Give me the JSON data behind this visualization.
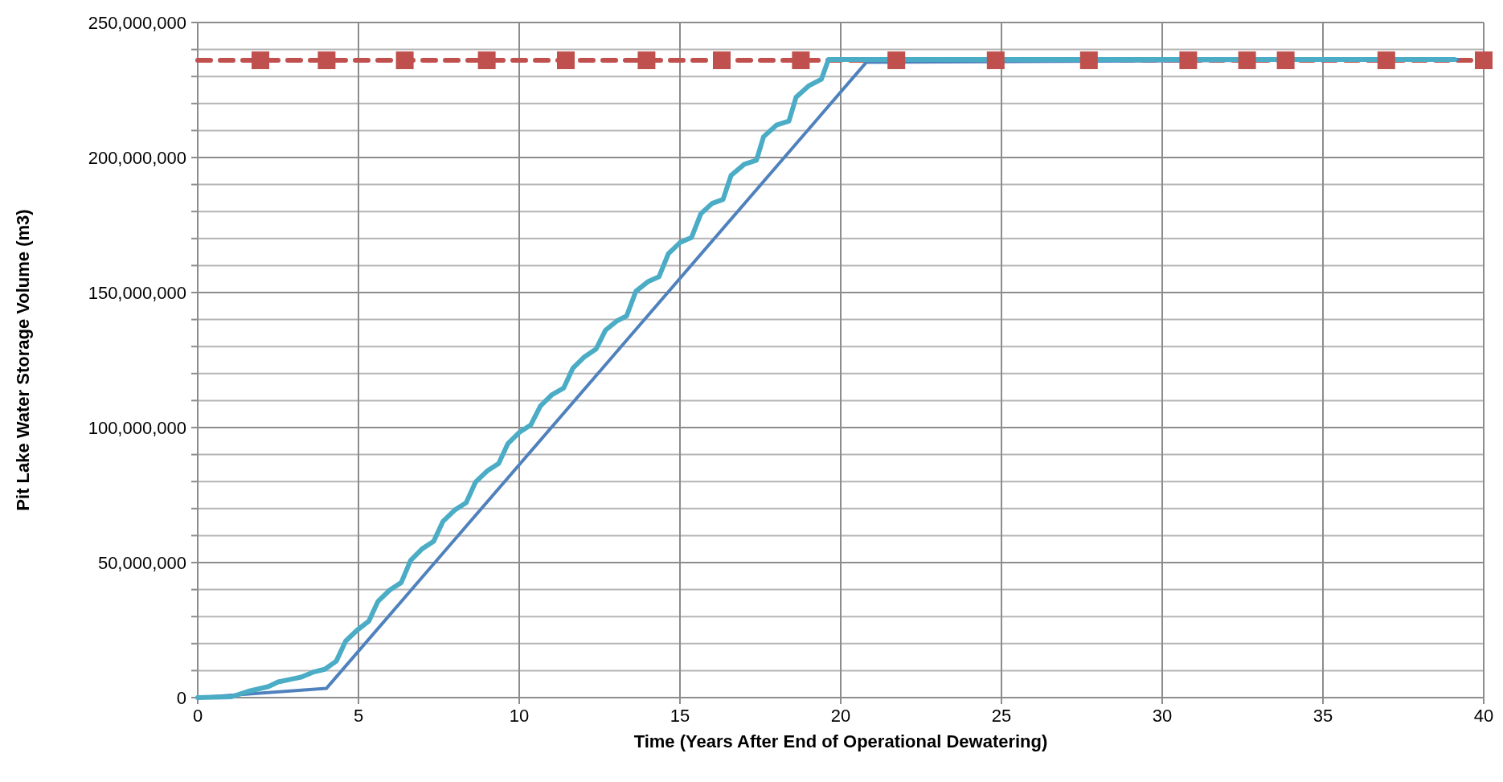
{
  "chart_data": {
    "type": "line",
    "xlabel": "Time (Years After End of Operational Dewatering)",
    "ylabel": "Pit Lake Water Storage Volume (m3)",
    "xlim": [
      0,
      40
    ],
    "xticks": [
      0,
      5,
      10,
      15,
      20,
      25,
      30,
      35,
      40
    ],
    "ylim": [
      0,
      250000000
    ],
    "yticks": [
      {
        "value": 0,
        "label": "0"
      },
      {
        "value": 10000000,
        "label": null
      },
      {
        "value": 20000000,
        "label": null
      },
      {
        "value": 30000000,
        "label": null
      },
      {
        "value": 40000000,
        "label": null
      },
      {
        "value": 50000000,
        "label": "50,000,000"
      },
      {
        "value": 60000000,
        "label": null
      },
      {
        "value": 70000000,
        "label": null
      },
      {
        "value": 80000000,
        "label": null
      },
      {
        "value": 90000000,
        "label": null
      },
      {
        "value": 100000000,
        "label": "100,000,000"
      },
      {
        "value": 110000000,
        "label": null
      },
      {
        "value": 120000000,
        "label": null
      },
      {
        "value": 130000000,
        "label": null
      },
      {
        "value": 140000000,
        "label": null
      },
      {
        "value": 150000000,
        "label": "150,000,000"
      },
      {
        "value": 160000000,
        "label": null
      },
      {
        "value": 170000000,
        "label": null
      },
      {
        "value": 180000000,
        "label": null
      },
      {
        "value": 190000000,
        "label": null
      },
      {
        "value": 200000000,
        "label": "200,000,000"
      },
      {
        "value": 210000000,
        "label": null
      },
      {
        "value": 220000000,
        "label": null
      },
      {
        "value": 230000000,
        "label": null
      },
      {
        "value": 240000000,
        "label": null
      },
      {
        "value": 250000000,
        "label": "250,000,000"
      }
    ],
    "grid": true,
    "line_style": "solid",
    "marker": "none",
    "ref_lines": [
      {
        "axis": "y",
        "value": 236000000,
        "label": null,
        "color": "#c0504d",
        "line_style": "dashed"
      }
    ],
    "series": [
      {
        "type": "scatter",
        "marker": "square",
        "color": "#c0504d",
        "x": [
          1.95,
          4.01,
          6.44,
          8.99,
          11.45,
          13.96,
          16.3,
          18.76,
          21.73,
          24.82,
          27.72,
          30.81,
          32.64,
          33.84,
          36.97,
          40
        ],
        "values": [
          236000000,
          236000000,
          236000000,
          236000000,
          236000000,
          236000000,
          236000000,
          236000000,
          236000000,
          236000000,
          236000000,
          236000000,
          236000000,
          236000000,
          236000000,
          236000000
        ]
      },
      {
        "color": "#4bacc6",
        "x": [
          0,
          1.05,
          1.56,
          2.2,
          2.5,
          2.93,
          3.22,
          3.58,
          3.95,
          4.31,
          4.6,
          4.96,
          5.32,
          5.61,
          5.97,
          6.33,
          6.62,
          6.98,
          7.34,
          7.63,
          7.99,
          8.35,
          8.64,
          9.0,
          9.36,
          9.65,
          10.0,
          10.36,
          10.66,
          11.02,
          11.38,
          11.67,
          12.03,
          12.39,
          12.68,
          13.04,
          13.34,
          13.63,
          14.0,
          14.35,
          14.64,
          15.0,
          15.36,
          15.65,
          16.0,
          16.34,
          16.59,
          17.0,
          17.38,
          17.6,
          18.0,
          18.39,
          18.61,
          19.0,
          19.4,
          19.62,
          39.1
        ],
        "values": [
          0,
          300000,
          2300000,
          4100000,
          5800000,
          6900000,
          7600000,
          9400000,
          10500000,
          13500000,
          20900000,
          25000000,
          28300000,
          35700000,
          39800000,
          42600000,
          50800000,
          55100000,
          57900000,
          65300000,
          69400000,
          72200000,
          79800000,
          83900000,
          86700000,
          94100000,
          98200000,
          101000000,
          108000000,
          112200000,
          114600000,
          122000000,
          126200000,
          129100000,
          136000000,
          139500000,
          141300000,
          150500000,
          154000000,
          155900000,
          164400000,
          168500000,
          170400000,
          179200000,
          183000000,
          184500000,
          193400000,
          197500000,
          199000000,
          207700000,
          212000000,
          213500000,
          222300000,
          226500000,
          229000000,
          236300000,
          236300000
        ]
      },
      {
        "color": "#4f81bd",
        "x": [
          0,
          4,
          20.8,
          39.2
        ],
        "values": [
          0,
          3400000,
          235300000,
          236300000
        ]
      }
    ]
  }
}
